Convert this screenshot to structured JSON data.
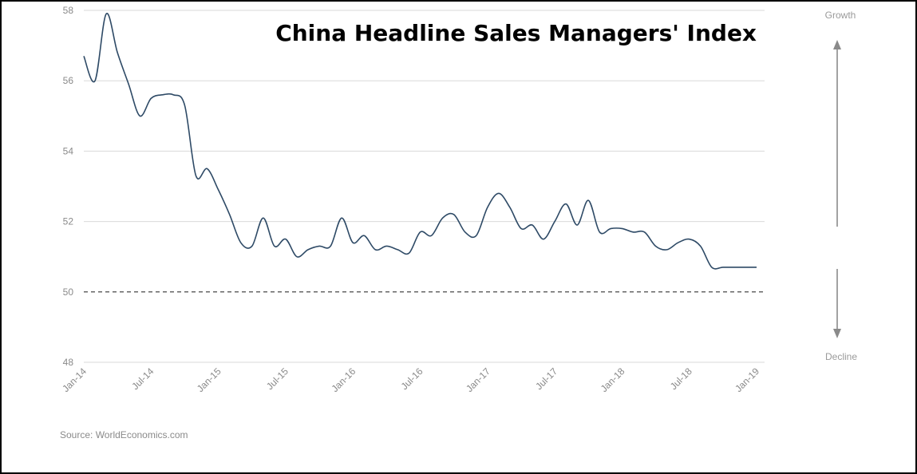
{
  "chart_data": {
    "type": "line",
    "title": "China Headline Sales Managers' Index",
    "xlabel": "",
    "ylabel": "",
    "ylim": [
      48,
      58
    ],
    "yticks": [
      "48",
      "50",
      "52",
      "54",
      "56",
      "58"
    ],
    "xticks": [
      "Jan-14",
      "Jul-14",
      "Jan-15",
      "Jul-15",
      "Jan-16",
      "Jul-16",
      "Jan-17",
      "Jul-17",
      "Jan-18",
      "Jul-18",
      "Jan-19"
    ],
    "grid": true,
    "reference_line": 50,
    "x": [
      "Jan-14",
      "Feb-14",
      "Mar-14",
      "Apr-14",
      "May-14",
      "Jun-14",
      "Jul-14",
      "Aug-14",
      "Sep-14",
      "Oct-14",
      "Nov-14",
      "Dec-14",
      "Jan-15",
      "Feb-15",
      "Mar-15",
      "Apr-15",
      "May-15",
      "Jun-15",
      "Jul-15",
      "Aug-15",
      "Sep-15",
      "Oct-15",
      "Nov-15",
      "Dec-15",
      "Jan-16",
      "Feb-16",
      "Mar-16",
      "Apr-16",
      "May-16",
      "Jun-16",
      "Jul-16",
      "Aug-16",
      "Sep-16",
      "Oct-16",
      "Nov-16",
      "Dec-16",
      "Jan-17",
      "Feb-17",
      "Mar-17",
      "Apr-17",
      "May-17",
      "Jun-17",
      "Jul-17",
      "Aug-17",
      "Sep-17",
      "Oct-17",
      "Nov-17",
      "Dec-17",
      "Jan-18",
      "Feb-18",
      "Mar-18",
      "Apr-18",
      "May-18",
      "Jun-18",
      "Jul-18",
      "Aug-18",
      "Sep-18",
      "Oct-18",
      "Nov-18",
      "Dec-18",
      "Jan-19"
    ],
    "series": [
      {
        "color": "#2e4a66",
        "values": [
          56.7,
          56.0,
          57.9,
          56.8,
          55.9,
          55.0,
          55.5,
          55.6,
          55.6,
          55.3,
          53.3,
          53.5,
          52.9,
          52.2,
          51.4,
          51.3,
          52.1,
          51.3,
          51.5,
          51.0,
          51.2,
          51.3,
          51.3,
          52.1,
          51.4,
          51.6,
          51.2,
          51.3,
          51.2,
          51.1,
          51.7,
          51.6,
          52.1,
          52.2,
          51.7,
          51.6,
          52.4,
          52.8,
          52.4,
          51.8,
          51.9,
          51.5,
          52.0,
          52.5,
          51.9,
          52.6,
          51.7,
          51.8,
          51.8,
          51.7,
          51.7,
          51.3,
          51.2,
          51.4,
          51.5,
          51.3,
          50.7,
          50.7,
          50.7,
          50.7,
          50.7
        ]
      }
    ]
  },
  "annotations": {
    "growth_label": "Growth",
    "decline_label": "Decline",
    "source": "Source: WorldEconomics.com"
  }
}
